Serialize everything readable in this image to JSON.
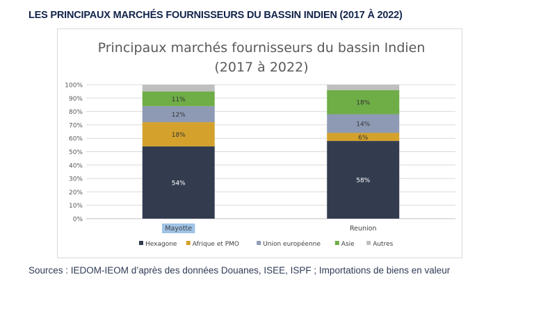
{
  "page": {
    "heading": "LES PRINCIPAUX MARCHÉS FOURNISSEURS DU BASSIN INDIEN (2017 À 2022)",
    "source": "Sources : IEDOM-IEOM d’après des données Douanes, ISEE, ISPF ; Importations de biens en valeur"
  },
  "chart_data": {
    "type": "bar",
    "stacked": true,
    "title_lines": [
      "Principaux marchés fournisseurs du bassin Indien",
      "(2017 à 2022)"
    ],
    "categories": [
      "Mayotte",
      "Reunion"
    ],
    "highlighted_category": "Mayotte",
    "yticks": [
      "0%",
      "10%",
      "20%",
      "30%",
      "40%",
      "50%",
      "60%",
      "70%",
      "80%",
      "90%",
      "100%"
    ],
    "ylim": [
      0,
      100
    ],
    "grid": true,
    "legend_position": "bottom",
    "series": [
      {
        "name": "Hexagone",
        "color": "#333c4f",
        "values": [
          54,
          58
        ],
        "labels": [
          "54%",
          "58%"
        ],
        "label_color": "#ffffff"
      },
      {
        "name": "Afrique et PMO",
        "color": "#d4a22c",
        "values": [
          18,
          6
        ],
        "labels": [
          "18%",
          "6%"
        ],
        "label_color": "#333333"
      },
      {
        "name": "Union européenne",
        "color": "#8e9ab4",
        "values": [
          12,
          14
        ],
        "labels": [
          "12%",
          "14%"
        ],
        "label_color": "#333333"
      },
      {
        "name": "Asie",
        "color": "#6fad47",
        "values": [
          11,
          18
        ],
        "labels": [
          "11%",
          "18%"
        ],
        "label_color": "#333333"
      },
      {
        "name": "Autres",
        "color": "#bfbfbf",
        "values": [
          5,
          4
        ],
        "labels": [
          "",
          ""
        ],
        "label_color": "#333333"
      }
    ]
  }
}
